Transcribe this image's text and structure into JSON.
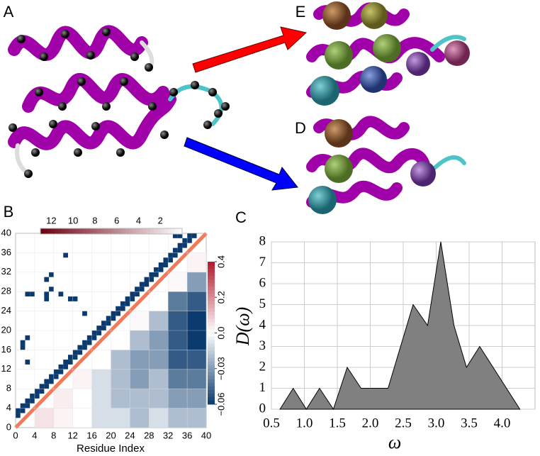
{
  "panel_labels": [
    "A",
    "B",
    "C",
    "D",
    "E"
  ],
  "chart_data": [
    {
      "type": "heatmap",
      "xlabel": "Residue Index",
      "xlim": [
        0,
        40
      ],
      "ylim": [
        0,
        40
      ],
      "xticks": [
        0,
        4,
        8,
        12,
        16,
        20,
        24,
        28,
        32,
        36,
        40
      ],
      "yticks": [
        0,
        4,
        8,
        12,
        16,
        20,
        24,
        28,
        32,
        36,
        40
      ],
      "contact_color": "#0b3a6e",
      "contacts": [
        [
          0,
          2
        ],
        [
          1,
          3
        ],
        [
          2,
          4
        ],
        [
          3,
          5
        ],
        [
          4,
          6
        ],
        [
          5,
          7
        ],
        [
          6,
          8
        ],
        [
          7,
          9
        ],
        [
          8,
          10
        ],
        [
          9,
          11
        ],
        [
          10,
          12
        ],
        [
          11,
          13
        ],
        [
          12,
          14
        ],
        [
          13,
          15
        ],
        [
          14,
          16
        ],
        [
          15,
          17
        ],
        [
          16,
          18
        ],
        [
          17,
          19
        ],
        [
          18,
          20
        ],
        [
          19,
          21
        ],
        [
          20,
          22
        ],
        [
          21,
          23
        ],
        [
          22,
          24
        ],
        [
          23,
          25
        ],
        [
          24,
          26
        ],
        [
          25,
          27
        ],
        [
          26,
          28
        ],
        [
          27,
          29
        ],
        [
          28,
          30
        ],
        [
          29,
          31
        ],
        [
          30,
          32
        ],
        [
          31,
          33
        ],
        [
          32,
          34
        ],
        [
          33,
          35
        ],
        [
          34,
          36
        ],
        [
          35,
          37
        ],
        [
          36,
          38
        ],
        [
          37,
          39
        ],
        [
          0,
          3
        ],
        [
          1,
          4
        ],
        [
          2,
          5
        ],
        [
          3,
          6
        ],
        [
          4,
          7
        ],
        [
          5,
          8
        ],
        [
          6,
          9
        ],
        [
          7,
          10
        ],
        [
          8,
          11
        ],
        [
          9,
          12
        ],
        [
          10,
          13
        ],
        [
          11,
          14
        ],
        [
          12,
          15
        ],
        [
          13,
          16
        ],
        [
          14,
          17
        ],
        [
          15,
          18
        ],
        [
          16,
          19
        ],
        [
          17,
          20
        ],
        [
          18,
          21
        ],
        [
          19,
          22
        ],
        [
          20,
          23
        ],
        [
          21,
          24
        ],
        [
          22,
          25
        ],
        [
          23,
          26
        ],
        [
          24,
          27
        ],
        [
          25,
          28
        ],
        [
          26,
          29
        ],
        [
          27,
          30
        ],
        [
          28,
          31
        ],
        [
          29,
          32
        ],
        [
          30,
          33
        ],
        [
          31,
          34
        ],
        [
          32,
          35
        ],
        [
          33,
          36
        ],
        [
          34,
          37
        ],
        [
          35,
          38
        ],
        [
          36,
          39
        ],
        [
          1,
          16
        ],
        [
          1,
          17
        ],
        [
          2,
          18
        ],
        [
          2,
          13
        ],
        [
          2,
          27
        ],
        [
          3,
          27
        ],
        [
          6,
          26
        ],
        [
          6,
          27
        ],
        [
          7,
          28
        ],
        [
          10,
          35
        ],
        [
          9,
          27
        ],
        [
          11,
          26
        ],
        [
          12,
          26
        ],
        [
          14,
          23
        ],
        [
          6,
          30
        ],
        [
          7,
          31
        ],
        [
          33,
          39
        ],
        [
          34,
          39
        ]
      ],
      "contact_colorbar": {
        "ticks": [
          12,
          10,
          8,
          6,
          4,
          2
        ],
        "lim": [
          13,
          0
        ]
      },
      "correlation": {
        "x": [
          0,
          4,
          8,
          12,
          16,
          20,
          24,
          28,
          32,
          36
        ],
        "y": [
          0,
          4,
          8,
          12,
          16,
          20,
          24,
          28,
          32,
          36
        ],
        "values": [
          [
            null,
            0.05,
            0.02,
            0.0,
            -0.01,
            -0.01,
            -0.02,
            -0.01,
            -0.02,
            -0.02
          ],
          [
            null,
            null,
            0.03,
            0.0,
            -0.01,
            -0.02,
            -0.02,
            -0.02,
            -0.03,
            -0.03
          ],
          [
            null,
            null,
            null,
            0.02,
            -0.01,
            -0.02,
            -0.03,
            -0.02,
            -0.04,
            -0.04
          ],
          [
            null,
            null,
            null,
            null,
            0.0,
            -0.02,
            -0.03,
            -0.03,
            -0.05,
            -0.05
          ],
          [
            null,
            null,
            null,
            null,
            null,
            0.0,
            -0.02,
            -0.03,
            -0.05,
            -0.06
          ],
          [
            null,
            null,
            null,
            null,
            null,
            null,
            0.01,
            -0.02,
            -0.05,
            -0.06
          ],
          [
            null,
            null,
            null,
            null,
            null,
            null,
            null,
            0.0,
            -0.04,
            -0.05
          ],
          [
            null,
            null,
            null,
            null,
            null,
            null,
            null,
            null,
            0.01,
            -0.03
          ],
          [
            null,
            null,
            null,
            null,
            null,
            null,
            null,
            null,
            null,
            0.02
          ],
          [
            null,
            null,
            null,
            null,
            null,
            null,
            null,
            null,
            null,
            null
          ]
        ]
      },
      "colorbar": {
        "ticks": [
          0.4,
          0.2,
          {
            "value": 0,
            "label": "0.0"
          },
          {
            "value": -0.03,
            "label": "−0.03"
          },
          {
            "value": -0.06,
            "label": "−0.06"
          }
        ]
      }
    },
    {
      "type": "area",
      "x": [
        0.63,
        0.83,
        1.03,
        1.23,
        1.44,
        1.65,
        1.86,
        2.27,
        2.65,
        2.87,
        3.07,
        3.27,
        3.46,
        3.66,
        4.27
      ],
      "values": [
        0,
        1,
        0,
        1,
        0,
        2,
        1,
        1,
        5,
        4,
        8,
        4,
        2,
        3,
        0
      ],
      "color": "#808080",
      "xlim": [
        0.5,
        4.5
      ],
      "ylim": [
        0,
        8
      ],
      "xticks": [
        0.5,
        {
          "value": 1,
          "label": "1.0"
        },
        1.5,
        {
          "value": 2,
          "label": "2.0"
        },
        2.5,
        {
          "value": 3,
          "label": "3.0"
        },
        3.5,
        {
          "value": 4,
          "label": "4.0"
        }
      ],
      "yticks": [
        0,
        1,
        2,
        3,
        4,
        5,
        6,
        7,
        8
      ],
      "xlabel": "ω",
      "ylabel": "D(ω)",
      "grid": true
    }
  ]
}
